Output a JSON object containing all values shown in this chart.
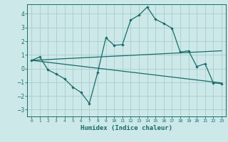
{
  "xlabel": "Humidex (Indice chaleur)",
  "ylabel": "",
  "xlim": [
    -0.5,
    23.5
  ],
  "ylim": [
    -3.5,
    4.7
  ],
  "background_color": "#cce8e8",
  "grid_color": "#aacccc",
  "line_color": "#1a6b6b",
  "xtick_labels": [
    "0",
    "1",
    "2",
    "3",
    "4",
    "5",
    "6",
    "7",
    "8",
    "9",
    "10",
    "11",
    "12",
    "13",
    "14",
    "15",
    "16",
    "17",
    "18",
    "19",
    "20",
    "21",
    "22",
    "23"
  ],
  "line1_x": [
    0,
    1,
    2,
    3,
    4,
    5,
    6,
    7,
    8,
    9,
    10,
    11,
    12,
    13,
    14,
    15,
    16,
    17,
    18,
    19,
    20,
    21,
    22,
    23
  ],
  "line1_y": [
    0.6,
    0.85,
    -0.1,
    -0.4,
    -0.75,
    -1.35,
    -1.75,
    -2.55,
    -0.3,
    2.25,
    1.7,
    1.75,
    3.55,
    3.9,
    4.5,
    3.6,
    3.3,
    2.95,
    1.2,
    1.3,
    0.15,
    0.35,
    -1.05,
    -1.1
  ],
  "line2_x": [
    0,
    23
  ],
  "line2_y": [
    0.6,
    1.3
  ],
  "line3_x": [
    0,
    23
  ],
  "line3_y": [
    0.6,
    -1.05
  ],
  "yticks": [
    -3,
    -2,
    -1,
    0,
    1,
    2,
    3,
    4
  ]
}
